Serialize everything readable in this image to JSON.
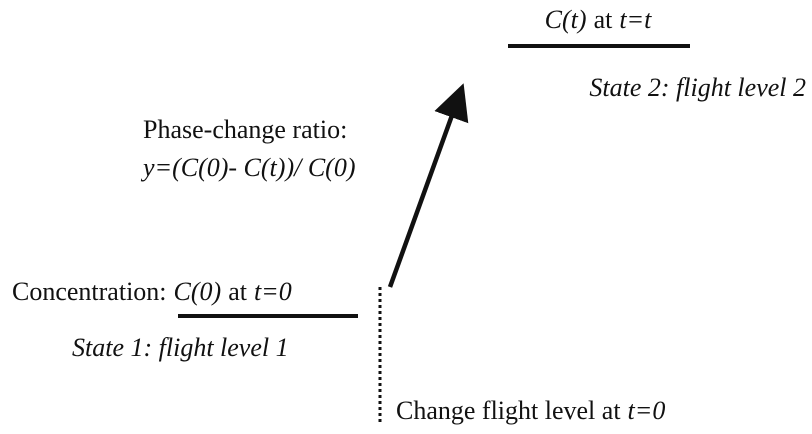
{
  "labels": {
    "final_state": [
      "C(t)",
      "at",
      "t=t"
    ],
    "state2": "State 2: flight level 2",
    "ratio_title": "Phase-change ratio:",
    "ratio_formula": "y=(C(0)- C(t))/ C(0)",
    "initial_state": [
      "Concentration:",
      "C(0)",
      "at",
      "t=0"
    ],
    "state1": "State 1: flight level 1",
    "change": [
      "Change flight level at",
      "t=0"
    ]
  }
}
